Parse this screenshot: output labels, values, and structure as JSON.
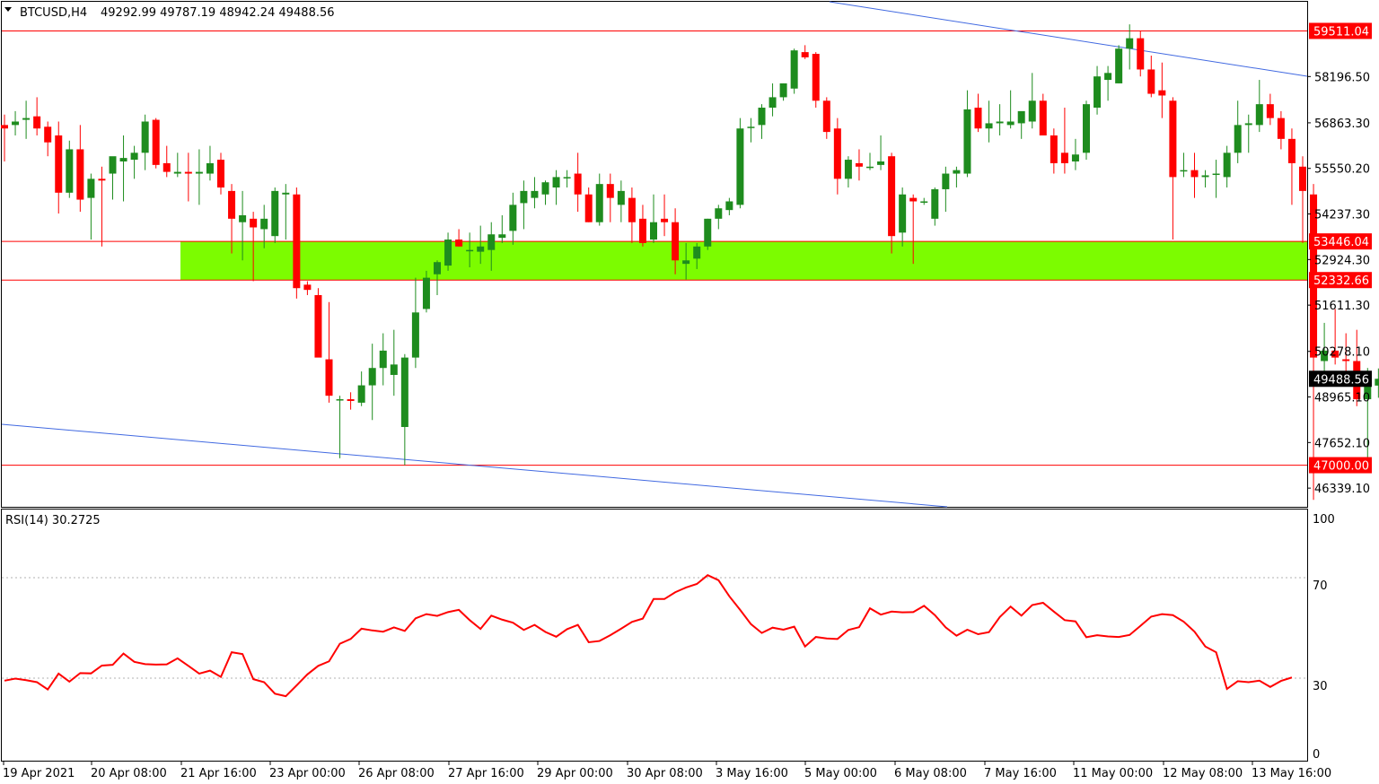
{
  "header": {
    "symbol": "BTCUSD,H4",
    "ohlc": "49292.99 49787.19 48942.24 49488.56"
  },
  "rsi_panel": {
    "label": "RSI(14) 30.2725",
    "levels": [
      "100",
      "70",
      "30",
      "0"
    ]
  },
  "price_axis": {
    "ticks": [
      "58196.50",
      "56863.30",
      "55550.20",
      "54237.30",
      "52924.30",
      "51611.30",
      "50278.10",
      "48965.10",
      "47652.10",
      "46339.10"
    ],
    "tick_values": [
      58196.5,
      56863.3,
      55550.2,
      54237.3,
      52924.3,
      51611.3,
      50278.1,
      48965.1,
      47652.1,
      46339.1
    ],
    "current_price": "49488.56",
    "levels": [
      {
        "label": "59511.04",
        "value": 59511.04
      },
      {
        "label": "53446.04",
        "value": 53446.04
      },
      {
        "label": "52332.66",
        "value": 52332.66
      },
      {
        "label": "47000.00",
        "value": 47000.0
      }
    ]
  },
  "time_axis": [
    "19 Apr 2021",
    "20 Apr 08:00",
    "21 Apr 16:00",
    "23 Apr 00:00",
    "26 Apr 08:00",
    "27 Apr 16:00",
    "29 Apr 00:00",
    "30 Apr 08:00",
    "3 May 16:00",
    "5 May 00:00",
    "6 May 08:00",
    "7 May 16:00",
    "11 May 00:00",
    "12 May 08:00",
    "13 May 16:00"
  ],
  "colors": {
    "bull": "#1e8c1e",
    "bear": "#ff0000",
    "zone": "#7cfc00",
    "level_line": "#ff0000",
    "trend_line": "#4169e1",
    "rsi_line": "#ff0000",
    "current_price_bg": "#000000"
  },
  "chart_data": [
    {
      "type": "candlestick",
      "ylim": [
        45800,
        60350
      ],
      "zone": [
        52332.66,
        53446.04
      ],
      "horizontal_levels": [
        59511.04,
        53446.04,
        52332.66,
        47000.0
      ],
      "candles": [
        {
          "o": 56800,
          "h": 57100,
          "l": 55750,
          "c": 56700
        },
        {
          "o": 56800,
          "h": 57200,
          "l": 56500,
          "c": 56900
        },
        {
          "o": 56950,
          "h": 57500,
          "l": 56400,
          "c": 57000
        },
        {
          "o": 57050,
          "h": 57600,
          "l": 56500,
          "c": 56700
        },
        {
          "o": 56750,
          "h": 56900,
          "l": 55900,
          "c": 56300
        },
        {
          "o": 56500,
          "h": 56900,
          "l": 54250,
          "c": 54850
        },
        {
          "o": 54850,
          "h": 56350,
          "l": 54700,
          "c": 56100
        },
        {
          "o": 56100,
          "h": 56800,
          "l": 54300,
          "c": 54650
        },
        {
          "o": 54700,
          "h": 55400,
          "l": 53500,
          "c": 55250
        },
        {
          "o": 55250,
          "h": 55600,
          "l": 53300,
          "c": 55200
        },
        {
          "o": 55400,
          "h": 55800,
          "l": 54650,
          "c": 55900
        },
        {
          "o": 55750,
          "h": 56500,
          "l": 54600,
          "c": 55850
        },
        {
          "o": 55800,
          "h": 56200,
          "l": 55250,
          "c": 56000
        },
        {
          "o": 56000,
          "h": 57100,
          "l": 55500,
          "c": 56900
        },
        {
          "o": 56950,
          "h": 57000,
          "l": 55550,
          "c": 55650
        },
        {
          "o": 55700,
          "h": 56200,
          "l": 55300,
          "c": 55450
        },
        {
          "o": 55400,
          "h": 56000,
          "l": 55300,
          "c": 55450
        },
        {
          "o": 55450,
          "h": 56000,
          "l": 54600,
          "c": 55400
        },
        {
          "o": 55400,
          "h": 56100,
          "l": 54500,
          "c": 55450
        },
        {
          "o": 55400,
          "h": 56200,
          "l": 55200,
          "c": 55700
        },
        {
          "o": 55800,
          "h": 56000,
          "l": 54800,
          "c": 55000
        },
        {
          "o": 54900,
          "h": 55100,
          "l": 53100,
          "c": 54100
        },
        {
          "o": 54000,
          "h": 54900,
          "l": 52900,
          "c": 54200
        },
        {
          "o": 54100,
          "h": 54300,
          "l": 52300,
          "c": 53850
        },
        {
          "o": 53800,
          "h": 54500,
          "l": 53250,
          "c": 54100
        },
        {
          "o": 53600,
          "h": 55000,
          "l": 53400,
          "c": 54900
        },
        {
          "o": 54800,
          "h": 55100,
          "l": 53500,
          "c": 54850
        },
        {
          "o": 54800,
          "h": 55000,
          "l": 51800,
          "c": 52100
        },
        {
          "o": 52200,
          "h": 52300,
          "l": 51900,
          "c": 52050
        },
        {
          "o": 51900,
          "h": 52100,
          "l": 50200,
          "c": 50100
        },
        {
          "o": 50050,
          "h": 51700,
          "l": 48800,
          "c": 49000
        },
        {
          "o": 48900,
          "h": 49000,
          "l": 47200,
          "c": 48900
        },
        {
          "o": 48900,
          "h": 49100,
          "l": 48600,
          "c": 48850
        },
        {
          "o": 48800,
          "h": 49700,
          "l": 48700,
          "c": 49300
        },
        {
          "o": 49300,
          "h": 50500,
          "l": 48300,
          "c": 49800
        },
        {
          "o": 49800,
          "h": 50800,
          "l": 49300,
          "c": 50300
        },
        {
          "o": 49600,
          "h": 50900,
          "l": 49000,
          "c": 49900
        },
        {
          "o": 48100,
          "h": 50200,
          "l": 47000,
          "c": 50100
        },
        {
          "o": 50100,
          "h": 52400,
          "l": 49800,
          "c": 51400
        },
        {
          "o": 51500,
          "h": 52600,
          "l": 51400,
          "c": 52400
        },
        {
          "o": 52500,
          "h": 52900,
          "l": 51900,
          "c": 52850
        },
        {
          "o": 52750,
          "h": 53700,
          "l": 52600,
          "c": 53500
        },
        {
          "o": 53500,
          "h": 53800,
          "l": 53300,
          "c": 53300
        },
        {
          "o": 53200,
          "h": 53700,
          "l": 52700,
          "c": 53200
        },
        {
          "o": 53150,
          "h": 53900,
          "l": 52800,
          "c": 53300
        },
        {
          "o": 53200,
          "h": 54000,
          "l": 52600,
          "c": 53650
        },
        {
          "o": 53550,
          "h": 54200,
          "l": 53400,
          "c": 53650
        },
        {
          "o": 53750,
          "h": 54850,
          "l": 53350,
          "c": 54500
        },
        {
          "o": 54550,
          "h": 55200,
          "l": 53800,
          "c": 54900
        },
        {
          "o": 54700,
          "h": 55300,
          "l": 54400,
          "c": 54900
        },
        {
          "o": 54800,
          "h": 55200,
          "l": 54500,
          "c": 55150
        },
        {
          "o": 55000,
          "h": 55500,
          "l": 54500,
          "c": 55300
        },
        {
          "o": 55300,
          "h": 55500,
          "l": 55000,
          "c": 55300
        },
        {
          "o": 55400,
          "h": 56000,
          "l": 54300,
          "c": 54800
        },
        {
          "o": 54800,
          "h": 55000,
          "l": 54000,
          "c": 54000
        },
        {
          "o": 54000,
          "h": 55400,
          "l": 53900,
          "c": 55100
        },
        {
          "o": 55100,
          "h": 55400,
          "l": 54000,
          "c": 54700
        },
        {
          "o": 54500,
          "h": 55200,
          "l": 54000,
          "c": 54900
        },
        {
          "o": 54700,
          "h": 55000,
          "l": 53400,
          "c": 54000
        },
        {
          "o": 54100,
          "h": 54500,
          "l": 53300,
          "c": 53400
        },
        {
          "o": 53500,
          "h": 54800,
          "l": 53400,
          "c": 54000
        },
        {
          "o": 54100,
          "h": 54800,
          "l": 53600,
          "c": 54000
        },
        {
          "o": 54000,
          "h": 54400,
          "l": 52500,
          "c": 52900
        },
        {
          "o": 52800,
          "h": 53400,
          "l": 52350,
          "c": 52900
        },
        {
          "o": 52950,
          "h": 53400,
          "l": 52650,
          "c": 53300
        },
        {
          "o": 53300,
          "h": 54100,
          "l": 53200,
          "c": 54100
        },
        {
          "o": 54100,
          "h": 54500,
          "l": 53800,
          "c": 54400
        },
        {
          "o": 54350,
          "h": 54700,
          "l": 54200,
          "c": 54600
        },
        {
          "o": 54500,
          "h": 57000,
          "l": 54400,
          "c": 56700
        },
        {
          "o": 56750,
          "h": 57000,
          "l": 56300,
          "c": 56750
        },
        {
          "o": 56800,
          "h": 57400,
          "l": 56400,
          "c": 57300
        },
        {
          "o": 57300,
          "h": 58000,
          "l": 57050,
          "c": 57600
        },
        {
          "o": 57600,
          "h": 58000,
          "l": 57500,
          "c": 58000
        },
        {
          "o": 57850,
          "h": 59000,
          "l": 57700,
          "c": 58950
        },
        {
          "o": 58900,
          "h": 59100,
          "l": 58700,
          "c": 58750
        },
        {
          "o": 58850,
          "h": 58900,
          "l": 57300,
          "c": 57500
        },
        {
          "o": 57500,
          "h": 57600,
          "l": 56400,
          "c": 56600
        },
        {
          "o": 56700,
          "h": 57000,
          "l": 54800,
          "c": 55250
        },
        {
          "o": 55250,
          "h": 55900,
          "l": 55000,
          "c": 55800
        },
        {
          "o": 55700,
          "h": 56100,
          "l": 55200,
          "c": 55600
        },
        {
          "o": 55600,
          "h": 56000,
          "l": 55500,
          "c": 55600
        },
        {
          "o": 55650,
          "h": 56500,
          "l": 55500,
          "c": 55750
        },
        {
          "o": 55900,
          "h": 56000,
          "l": 53100,
          "c": 53600
        },
        {
          "o": 53700,
          "h": 55000,
          "l": 53300,
          "c": 54800
        },
        {
          "o": 54700,
          "h": 54800,
          "l": 52800,
          "c": 54600
        },
        {
          "o": 54600,
          "h": 54700,
          "l": 54500,
          "c": 54600
        },
        {
          "o": 54100,
          "h": 55000,
          "l": 53900,
          "c": 54950
        },
        {
          "o": 54950,
          "h": 55600,
          "l": 54300,
          "c": 55400
        },
        {
          "o": 55400,
          "h": 55600,
          "l": 55000,
          "c": 55500
        },
        {
          "o": 55400,
          "h": 57800,
          "l": 55300,
          "c": 57250
        },
        {
          "o": 57300,
          "h": 57700,
          "l": 56600,
          "c": 56700
        },
        {
          "o": 56700,
          "h": 57500,
          "l": 56300,
          "c": 56850
        },
        {
          "o": 56850,
          "h": 57400,
          "l": 56500,
          "c": 56900
        },
        {
          "o": 56800,
          "h": 57800,
          "l": 56700,
          "c": 56900
        },
        {
          "o": 56850,
          "h": 57100,
          "l": 56400,
          "c": 57200
        },
        {
          "o": 56900,
          "h": 58300,
          "l": 56700,
          "c": 57500
        },
        {
          "o": 57500,
          "h": 57700,
          "l": 56600,
          "c": 56500
        },
        {
          "o": 56500,
          "h": 56700,
          "l": 55400,
          "c": 55700
        },
        {
          "o": 56000,
          "h": 57300,
          "l": 55400,
          "c": 55700
        },
        {
          "o": 55750,
          "h": 56400,
          "l": 55500,
          "c": 55950
        },
        {
          "o": 56000,
          "h": 57500,
          "l": 55800,
          "c": 57400
        },
        {
          "o": 57300,
          "h": 58500,
          "l": 57100,
          "c": 58200
        },
        {
          "o": 58100,
          "h": 58500,
          "l": 57500,
          "c": 58300
        },
        {
          "o": 58000,
          "h": 59100,
          "l": 58000,
          "c": 59000
        },
        {
          "o": 59000,
          "h": 59700,
          "l": 58400,
          "c": 59300
        },
        {
          "o": 59300,
          "h": 59511,
          "l": 58200,
          "c": 58400
        },
        {
          "o": 58400,
          "h": 58800,
          "l": 57600,
          "c": 57700
        },
        {
          "o": 57800,
          "h": 58600,
          "l": 57000,
          "c": 57650
        },
        {
          "o": 57500,
          "h": 57600,
          "l": 53500,
          "c": 55300
        },
        {
          "o": 55500,
          "h": 56000,
          "l": 55300,
          "c": 55500
        },
        {
          "o": 55500,
          "h": 56000,
          "l": 54700,
          "c": 55300
        },
        {
          "o": 55300,
          "h": 55500,
          "l": 55000,
          "c": 55350
        },
        {
          "o": 55400,
          "h": 55800,
          "l": 54700,
          "c": 55400
        },
        {
          "o": 55300,
          "h": 56200,
          "l": 55000,
          "c": 56000
        },
        {
          "o": 56000,
          "h": 57500,
          "l": 55700,
          "c": 56800
        },
        {
          "o": 56800,
          "h": 57100,
          "l": 56000,
          "c": 56850
        },
        {
          "o": 56800,
          "h": 58100,
          "l": 56600,
          "c": 57400
        },
        {
          "o": 57400,
          "h": 57700,
          "l": 56800,
          "c": 57000
        },
        {
          "o": 57000,
          "h": 57200,
          "l": 56100,
          "c": 56400
        },
        {
          "o": 56400,
          "h": 56700,
          "l": 54500,
          "c": 55700
        },
        {
          "o": 55600,
          "h": 55900,
          "l": 53400,
          "c": 54900
        },
        {
          "o": 54800,
          "h": 55100,
          "l": 46000,
          "c": 50100
        },
        {
          "o": 50000,
          "h": 51100,
          "l": 49600,
          "c": 50300
        },
        {
          "o": 50300,
          "h": 51500,
          "l": 49900,
          "c": 50100
        },
        {
          "o": 50050,
          "h": 50800,
          "l": 49600,
          "c": 50000
        },
        {
          "o": 50000,
          "h": 50900,
          "l": 48700,
          "c": 48900
        },
        {
          "o": 48900,
          "h": 49800,
          "l": 47200,
          "c": 49400
        },
        {
          "o": 49293,
          "h": 49787,
          "l": 48942,
          "c": 49489
        }
      ]
    },
    {
      "type": "line",
      "title": "RSI(14) 30.2725",
      "ylim": [
        0,
        100
      ],
      "levels": [
        70,
        30
      ],
      "values": [
        29,
        29.8,
        29.2,
        28.4,
        25.5,
        31.8,
        28.6,
        32,
        31.9,
        35,
        35.3,
        39.8,
        36.5,
        35.6,
        35.4,
        35.5,
        37.9,
        34.9,
        31.8,
        33,
        30.5,
        40.3,
        39.6,
        29.6,
        28.4,
        23.8,
        22.8,
        27.1,
        31.5,
        34.9,
        36.7,
        43.7,
        45.6,
        49.7,
        49,
        48.5,
        50.2,
        48.8,
        53.8,
        55.5,
        54.8,
        56.3,
        57.2,
        53.1,
        49.6,
        54.9,
        53.3,
        52.1,
        49.2,
        51.2,
        48.4,
        46.5,
        49.5,
        51.2,
        44.3,
        44.8,
        47.1,
        49.7,
        52.4,
        53.7,
        61.5,
        61.5,
        64.2,
        66.1,
        67.5,
        71,
        69,
        62.6,
        57.2,
        51.5,
        48,
        50.1,
        49.3,
        50.5,
        42.6,
        46.4,
        45.8,
        45.6,
        49.2,
        50.3,
        57.8,
        55.3,
        56.5,
        56.2,
        56.3,
        58.8,
        55.1,
        50.2,
        46.9,
        49.3,
        47.5,
        48.3,
        54.3,
        58.5,
        54.9,
        59.1,
        60,
        56.5,
        53.1,
        52.6,
        46.3,
        47.1,
        46.6,
        46.4,
        47.2,
        50.8,
        54.5,
        55.5,
        55.1,
        52.5,
        48.5,
        42.6,
        40.3,
        25.7,
        28.8,
        28.4,
        29,
        26.5,
        28.9,
        30.27
      ]
    }
  ]
}
